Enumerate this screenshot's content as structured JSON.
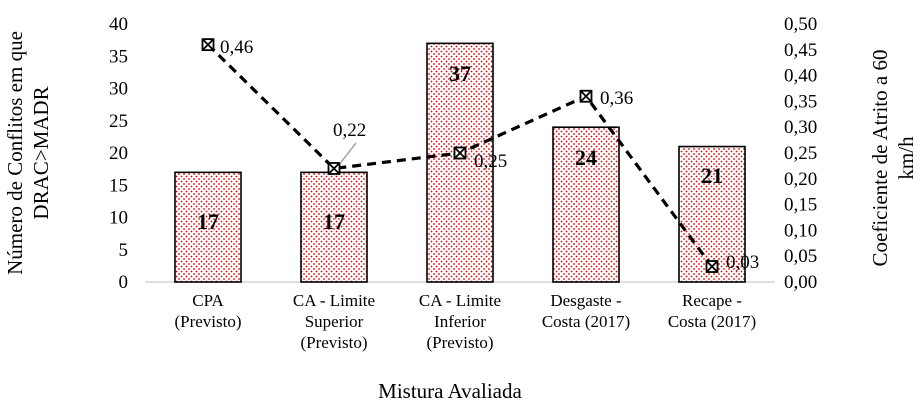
{
  "chart_data": {
    "type": "bar",
    "xlabel": "Mistura Avaliada",
    "ylabel_left": [
      "Número de Conflitos em que",
      "DRAC>MADR"
    ],
    "ylabel_right": [
      "Coeficiente de Atrito a 60",
      "km/h"
    ],
    "categories": [
      [
        "CPA",
        "(Previsto)"
      ],
      [
        "CA - Limite",
        "Superior",
        "(Previsto)"
      ],
      [
        "CA - Limite",
        "Inferior",
        "(Previsto)"
      ],
      [
        "Desgaste -",
        "Costa (2017)"
      ],
      [
        "Recape -",
        "Costa (2017)"
      ]
    ],
    "bars": {
      "values": [
        17,
        17,
        37,
        24,
        21
      ],
      "labels": [
        "17",
        "17",
        "37",
        "24",
        "21"
      ],
      "ylim": [
        0,
        40
      ],
      "ticks": [
        "0",
        "5",
        "10",
        "15",
        "20",
        "25",
        "30",
        "35",
        "40"
      ]
    },
    "line": {
      "values": [
        0.46,
        0.22,
        0.25,
        0.36,
        0.03
      ],
      "labels": [
        "0,46",
        "0,22",
        "0,25",
        "0,36",
        "0,03"
      ],
      "ylim": [
        0,
        0.5
      ],
      "ticks": [
        "0,00",
        "0,05",
        "0,10",
        "0,15",
        "0,20",
        "0,25",
        "0,30",
        "0,35",
        "0,40",
        "0,45",
        "0,50"
      ]
    },
    "colors": {
      "bar_fill": "#ffffff",
      "bar_dots": "#e00000",
      "bar_edge": "#000000",
      "line": "#000000"
    },
    "legend": "none",
    "grid": false
  }
}
